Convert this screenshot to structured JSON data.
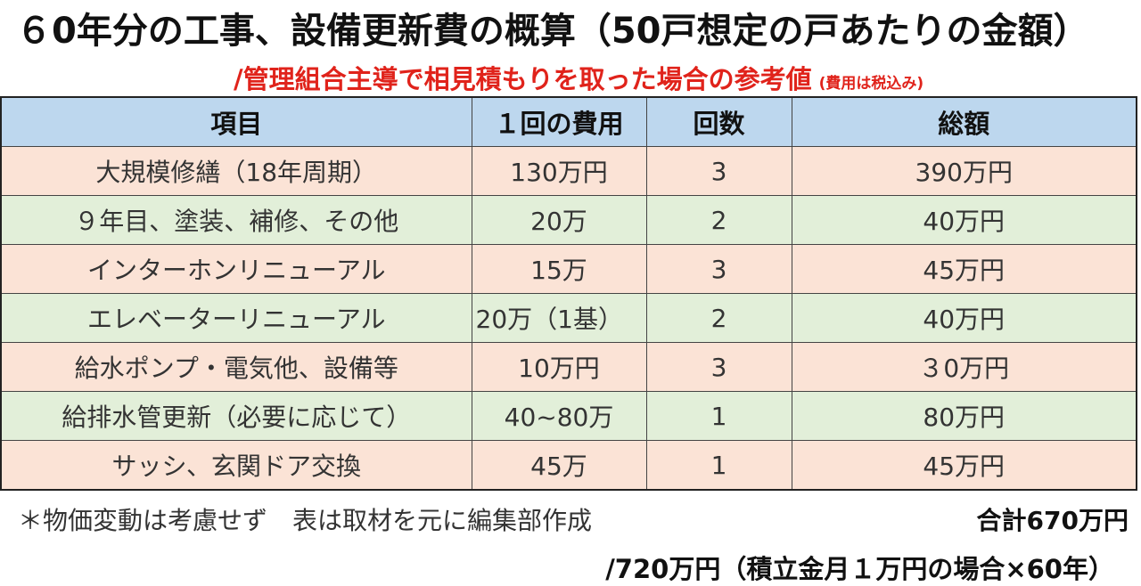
{
  "title": "６0年分の工事、設備更新費の概算（50戸想定の戸あたりの金額）",
  "subtitle": "/管理組合主導で相見積もりを取った場合の参考値",
  "tax_note": "(費用は税込み)",
  "table": {
    "headers": [
      "項目",
      "１回の費用",
      "回数",
      "総額"
    ],
    "rows": [
      {
        "item": "大規模修繕（18年周期）",
        "cost": "130万円",
        "count": "3",
        "total": "390万円"
      },
      {
        "item": "９年目、塗装、補修、その他",
        "cost": "20万",
        "count": "2",
        "total": "40万円"
      },
      {
        "item": "インターホンリニューアル",
        "cost": "15万",
        "count": "3",
        "total": "45万円"
      },
      {
        "item": "エレベーターリニューアル",
        "cost": "20万（1基）",
        "count": "2",
        "total": "40万円"
      },
      {
        "item": "給水ポンプ・電気他、設備等",
        "cost": "10万円",
        "count": "3",
        "total": "３0万円"
      },
      {
        "item": "給排水管更新（必要に応じて）",
        "cost": "40~80万",
        "count": "1",
        "total": "80万円"
      },
      {
        "item": "サッシ、玄関ドア交換",
        "cost": "45万",
        "count": "1",
        "total": "45万円"
      }
    ]
  },
  "footnote": "＊物価変動は考慮せず　表は取材を元に編集部作成",
  "total": "合計670万円",
  "alt_total": "/720万円（積立金月１万円の場合×60年）",
  "colors": {
    "header_bg": "#bdd7ee",
    "row_pink": "#fbe3d6",
    "row_green": "#e2efd9",
    "subtitle_red": "#e0231b"
  }
}
